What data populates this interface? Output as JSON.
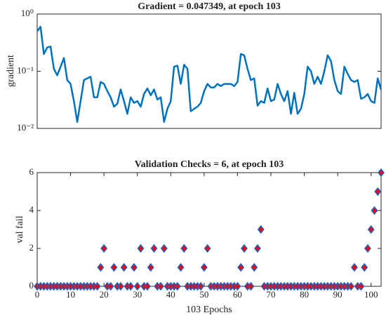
{
  "chart_data": [
    {
      "type": "line",
      "title": "Gradient = 0.047349, at epoch 103",
      "ylabel": "gradient",
      "log_y": true,
      "color": "#0072bd",
      "x": [
        0,
        1,
        2,
        3,
        4,
        5,
        6,
        7,
        8,
        9,
        10,
        11,
        12,
        13,
        14,
        15,
        16,
        17,
        18,
        19,
        20,
        21,
        22,
        23,
        24,
        25,
        26,
        27,
        28,
        29,
        30,
        31,
        32,
        33,
        34,
        35,
        36,
        37,
        38,
        39,
        40,
        41,
        42,
        43,
        44,
        45,
        46,
        47,
        48,
        49,
        50,
        51,
        52,
        53,
        54,
        55,
        56,
        57,
        58,
        59,
        60,
        61,
        62,
        63,
        64,
        65,
        66,
        67,
        68,
        69,
        70,
        71,
        72,
        73,
        74,
        75,
        76,
        77,
        78,
        79,
        80,
        81,
        82,
        83,
        84,
        85,
        86,
        87,
        88,
        89,
        90,
        91,
        92,
        93,
        94,
        95,
        96,
        97,
        98,
        99,
        100,
        101,
        102,
        103
      ],
      "values": [
        0.5,
        0.6,
        0.2,
        0.26,
        0.27,
        0.11,
        0.085,
        0.12,
        0.17,
        0.07,
        0.06,
        0.03,
        0.013,
        0.03,
        0.07,
        0.075,
        0.08,
        0.035,
        0.035,
        0.065,
        0.06,
        0.045,
        0.035,
        0.024,
        0.027,
        0.048,
        0.03,
        0.018,
        0.035,
        0.028,
        0.03,
        0.024,
        0.04,
        0.05,
        0.038,
        0.048,
        0.032,
        0.035,
        0.013,
        0.022,
        0.03,
        0.12,
        0.125,
        0.06,
        0.13,
        0.11,
        0.02,
        0.022,
        0.024,
        0.028,
        0.045,
        0.06,
        0.052,
        0.052,
        0.06,
        0.055,
        0.06,
        0.06,
        0.06,
        0.055,
        0.065,
        0.2,
        0.19,
        0.11,
        0.07,
        0.075,
        0.025,
        0.03,
        0.028,
        0.05,
        0.03,
        0.032,
        0.06,
        0.04,
        0.03,
        0.045,
        0.018,
        0.042,
        0.018,
        0.022,
        0.04,
        0.12,
        0.1,
        0.06,
        0.08,
        0.06,
        0.1,
        0.19,
        0.15,
        0.07,
        0.045,
        0.04,
        0.12,
        0.09,
        0.07,
        0.065,
        0.07,
        0.033,
        0.035,
        0.04,
        0.03,
        0.028,
        0.075,
        0.047349
      ],
      "xlim": [
        0,
        103
      ],
      "ylim": [
        0.01,
        1
      ],
      "yticks": [
        {
          "value": 0.01,
          "label": "10⁻²"
        },
        {
          "value": 0.1,
          "label": "10⁻¹"
        },
        {
          "value": 1,
          "label": "10⁰"
        }
      ]
    },
    {
      "type": "scatter",
      "title": "Validation Checks = 6, at epoch 103",
      "ylabel": "val fail",
      "xlabel": "103 Epochs",
      "color": "#ff0000",
      "edge_color": "#2060c0",
      "x": [
        0,
        1,
        2,
        3,
        4,
        5,
        6,
        7,
        8,
        9,
        10,
        11,
        12,
        13,
        14,
        15,
        16,
        17,
        18,
        19,
        20,
        21,
        22,
        23,
        24,
        25,
        26,
        27,
        28,
        29,
        30,
        31,
        32,
        33,
        34,
        35,
        36,
        37,
        38,
        39,
        40,
        41,
        42,
        43,
        44,
        45,
        46,
        47,
        48,
        49,
        50,
        51,
        52,
        53,
        54,
        55,
        56,
        57,
        58,
        59,
        60,
        61,
        62,
        63,
        64,
        65,
        66,
        67,
        68,
        69,
        70,
        71,
        72,
        73,
        74,
        75,
        76,
        77,
        78,
        79,
        80,
        81,
        82,
        83,
        84,
        85,
        86,
        87,
        88,
        89,
        90,
        91,
        92,
        93,
        94,
        95,
        96,
        97,
        98,
        99,
        100,
        101,
        102,
        103
      ],
      "values": [
        0,
        0,
        0,
        0,
        0,
        0,
        0,
        0,
        0,
        0,
        0,
        0,
        0,
        0,
        0,
        0,
        0,
        0,
        0,
        1,
        2,
        0,
        0,
        1,
        0,
        0,
        1,
        0,
        0,
        1,
        0,
        2,
        0,
        0,
        1,
        2,
        0,
        0,
        2,
        0,
        0,
        0,
        0,
        1,
        2,
        0,
        0,
        0,
        0,
        0,
        1,
        2,
        0,
        0,
        0,
        0,
        0,
        0,
        0,
        0,
        0,
        1,
        2,
        0,
        0,
        1,
        2,
        3,
        0,
        0,
        0,
        0,
        0,
        0,
        0,
        0,
        0,
        0,
        0,
        0,
        0,
        0,
        0,
        0,
        0,
        0,
        0,
        0,
        0,
        0,
        0,
        0,
        0,
        0,
        0,
        1,
        0,
        0,
        1,
        2,
        3,
        4,
        5,
        6
      ],
      "xlim": [
        0,
        103
      ],
      "ylim": [
        0,
        6
      ],
      "xticks": [
        0,
        10,
        20,
        30,
        40,
        50,
        60,
        70,
        80,
        90,
        100
      ],
      "yticks": [
        0,
        2,
        4,
        6
      ]
    }
  ]
}
